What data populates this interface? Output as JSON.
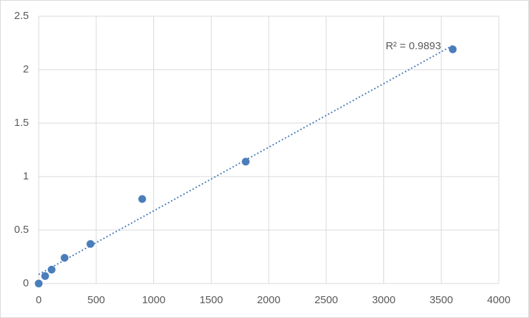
{
  "chart_data": {
    "type": "scatter",
    "x": [
      0,
      56.25,
      112.5,
      225,
      450,
      900,
      1800,
      3600
    ],
    "values": [
      0,
      0.07,
      0.13,
      0.24,
      0.37,
      0.79,
      1.14,
      2.19
    ],
    "color": "#4a7ebb",
    "trendline": "linear",
    "trendline_color": "#4a7ebb",
    "annotation": "R² = 0.9893",
    "xlim": [
      0,
      4000
    ],
    "xticks": [
      0,
      500,
      1000,
      1500,
      2000,
      2500,
      3000,
      3500,
      4000
    ],
    "ylim": [
      0,
      2.5
    ],
    "yticks": [
      0,
      0.5,
      1,
      1.5,
      2,
      2.5
    ],
    "grid": true
  }
}
